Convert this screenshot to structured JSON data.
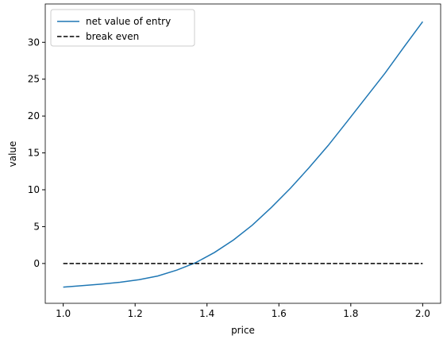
{
  "chart_data": {
    "type": "line",
    "x": [
      1.0,
      1.053,
      1.105,
      1.158,
      1.211,
      1.263,
      1.316,
      1.368,
      1.421,
      1.474,
      1.526,
      1.579,
      1.632,
      1.684,
      1.737,
      1.789,
      1.842,
      1.895,
      1.947,
      2.0
    ],
    "series": [
      {
        "name": "net value of entry",
        "color": "#1f77b4",
        "dash": "solid",
        "values": [
          -3.2,
          -3.0,
          -2.8,
          -2.55,
          -2.2,
          -1.7,
          -0.9,
          0.1,
          1.5,
          3.2,
          5.2,
          7.6,
          10.2,
          13.0,
          16.0,
          19.2,
          22.5,
          25.8,
          29.3,
          32.8
        ]
      },
      {
        "name": "break even",
        "color": "#000000",
        "dash": "dashed",
        "x": [
          1.0,
          2.0
        ],
        "values": [
          0,
          0
        ]
      }
    ],
    "xlabel": "price",
    "ylabel": "value",
    "xlim": [
      0.95,
      2.05
    ],
    "ylim": [
      -5.4,
      35.2
    ],
    "xticks": [
      {
        "value": 1.0,
        "label": "1.0"
      },
      1.2,
      1.4,
      1.6,
      1.8,
      {
        "value": 2.0,
        "label": "2.0"
      }
    ],
    "yticks": [
      0,
      5,
      10,
      15,
      20,
      25,
      30
    ],
    "legend": "upper left"
  }
}
